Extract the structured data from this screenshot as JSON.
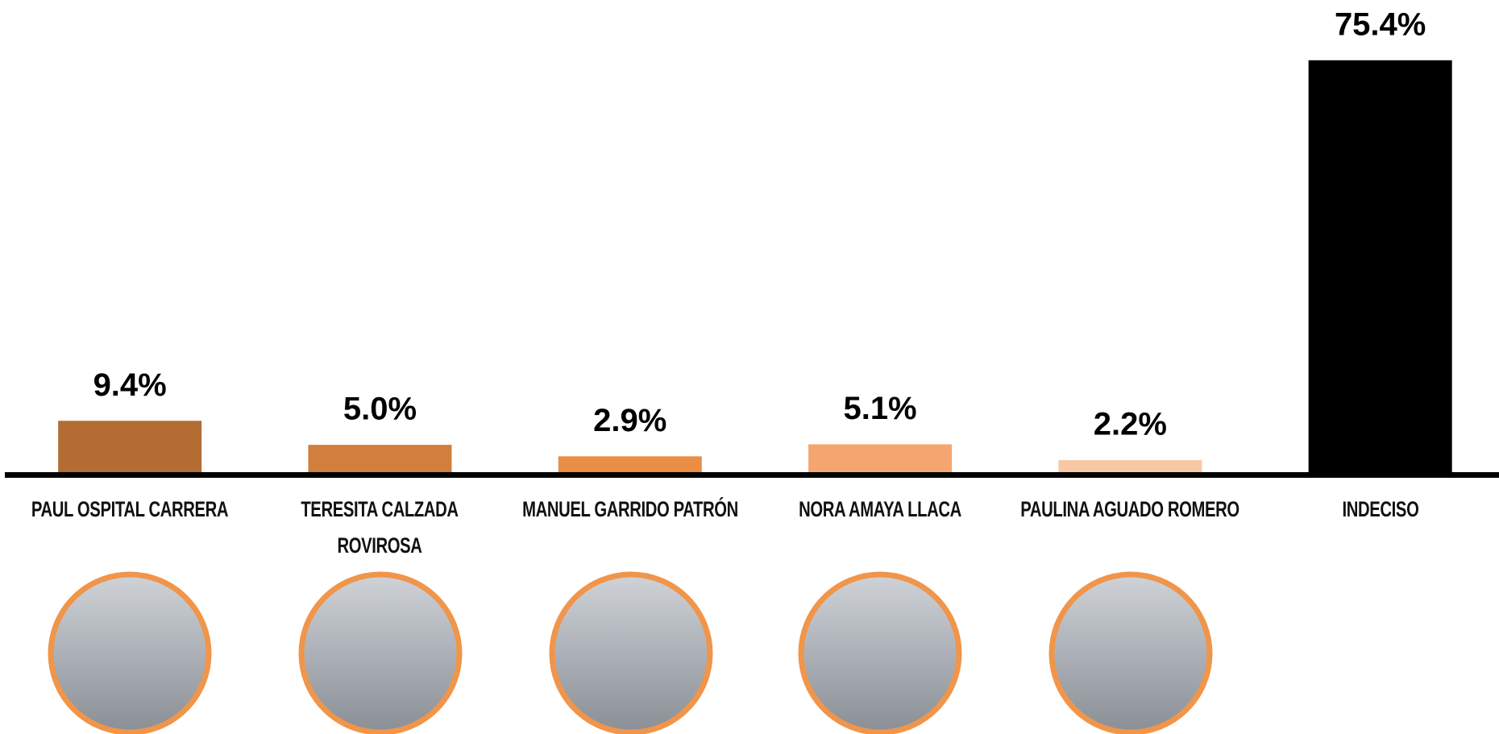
{
  "chart_data": {
    "type": "bar",
    "categories": [
      "PAUL OSPITAL CARRERA",
      "TERESITA CALZADA ROVIROSA",
      "MANUEL GARRIDO PATRÓN",
      "NORA AMAYA LLACA",
      "PAULINA AGUADO ROMERO",
      "INDECISO"
    ],
    "values": [
      9.4,
      5.0,
      2.9,
      5.1,
      2.2,
      75.4
    ],
    "value_labels": [
      "9.4%",
      "5.0%",
      "2.9%",
      "5.1%",
      "2.2%",
      "75.4%"
    ],
    "colors": [
      "#b36d33",
      "#d17f3c",
      "#ea8d45",
      "#f5a670",
      "#f8c7a6",
      "#000000"
    ]
  }
}
